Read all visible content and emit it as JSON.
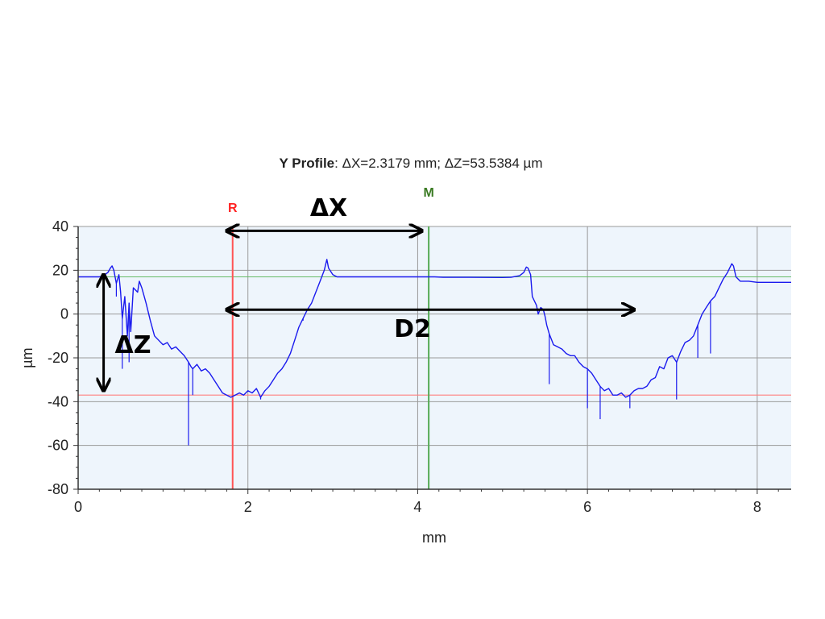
{
  "chart_data": {
    "type": "line",
    "title_bold": "Y Profile",
    "title_rest": ": ΔX=2.3179 mm; ΔZ=53.5384 µm",
    "xlabel": "mm",
    "ylabel": "µm",
    "xlim": [
      0,
      8.4
    ],
    "ylim": [
      -80,
      40
    ],
    "x_ticks": [
      0,
      2,
      4,
      6,
      8
    ],
    "x_tick_labels": [
      "0",
      "2",
      "4",
      "6",
      "8"
    ],
    "y_ticks": [
      40,
      20,
      0,
      -20,
      -40,
      -60,
      -80
    ],
    "y_tick_labels": [
      "40",
      "20",
      "0",
      "-20",
      "-40",
      "-60",
      "-80"
    ],
    "grid": true,
    "plot_background": "#eef5fc",
    "series_color": "#1a1aee",
    "series": [
      {
        "color": "#1a1aee",
        "points": [
          [
            0.0,
            17
          ],
          [
            0.1,
            17
          ],
          [
            0.2,
            17
          ],
          [
            0.25,
            17
          ],
          [
            0.3,
            17.5
          ],
          [
            0.35,
            19
          ],
          [
            0.38,
            21
          ],
          [
            0.4,
            22
          ],
          [
            0.42,
            20
          ],
          [
            0.45,
            14
          ],
          [
            0.48,
            18
          ],
          [
            0.5,
            10
          ],
          [
            0.52,
            -2
          ],
          [
            0.55,
            8
          ],
          [
            0.58,
            -10
          ],
          [
            0.6,
            5
          ],
          [
            0.62,
            -8
          ],
          [
            0.65,
            12
          ],
          [
            0.7,
            10
          ],
          [
            0.72,
            15
          ],
          [
            0.75,
            12
          ],
          [
            0.8,
            5
          ],
          [
            0.85,
            -3
          ],
          [
            0.9,
            -10
          ],
          [
            0.95,
            -12
          ],
          [
            1.0,
            -14
          ],
          [
            1.05,
            -13
          ],
          [
            1.1,
            -16
          ],
          [
            1.15,
            -15
          ],
          [
            1.2,
            -17
          ],
          [
            1.25,
            -19
          ],
          [
            1.3,
            -22
          ],
          [
            1.33,
            -24
          ],
          [
            1.35,
            -25
          ],
          [
            1.4,
            -23
          ],
          [
            1.45,
            -26
          ],
          [
            1.5,
            -25
          ],
          [
            1.55,
            -27
          ],
          [
            1.6,
            -30
          ],
          [
            1.65,
            -33
          ],
          [
            1.7,
            -36
          ],
          [
            1.75,
            -37
          ],
          [
            1.8,
            -38
          ],
          [
            1.85,
            -37
          ],
          [
            1.9,
            -36
          ],
          [
            1.95,
            -37
          ],
          [
            2.0,
            -35
          ],
          [
            2.05,
            -36
          ],
          [
            2.1,
            -34
          ],
          [
            2.15,
            -38
          ],
          [
            2.2,
            -35
          ],
          [
            2.25,
            -33
          ],
          [
            2.3,
            -30
          ],
          [
            2.35,
            -27
          ],
          [
            2.4,
            -25
          ],
          [
            2.45,
            -22
          ],
          [
            2.5,
            -18
          ],
          [
            2.55,
            -12
          ],
          [
            2.6,
            -6
          ],
          [
            2.65,
            -2
          ],
          [
            2.7,
            2
          ],
          [
            2.75,
            5
          ],
          [
            2.8,
            10
          ],
          [
            2.85,
            15
          ],
          [
            2.9,
            20
          ],
          [
            2.93,
            25
          ],
          [
            2.95,
            21
          ],
          [
            3.0,
            18
          ],
          [
            3.05,
            17
          ],
          [
            3.1,
            17
          ],
          [
            3.5,
            17
          ],
          [
            4.0,
            17
          ],
          [
            4.2,
            17
          ],
          [
            4.3,
            16.8
          ],
          [
            4.6,
            16.8
          ],
          [
            5.0,
            16.7
          ],
          [
            5.1,
            16.8
          ],
          [
            5.2,
            17.5
          ],
          [
            5.25,
            19
          ],
          [
            5.28,
            21.5
          ],
          [
            5.3,
            21
          ],
          [
            5.33,
            18
          ],
          [
            5.35,
            8
          ],
          [
            5.4,
            4
          ],
          [
            5.42,
            0
          ],
          [
            5.45,
            3
          ],
          [
            5.48,
            2
          ],
          [
            5.5,
            -1
          ],
          [
            5.52,
            -5
          ],
          [
            5.55,
            -9
          ],
          [
            5.58,
            -12
          ],
          [
            5.6,
            -14
          ],
          [
            5.65,
            -15
          ],
          [
            5.7,
            -16
          ],
          [
            5.75,
            -18
          ],
          [
            5.8,
            -19
          ],
          [
            5.85,
            -19
          ],
          [
            5.9,
            -22
          ],
          [
            5.95,
            -24
          ],
          [
            6.0,
            -25
          ],
          [
            6.05,
            -27
          ],
          [
            6.1,
            -30
          ],
          [
            6.15,
            -33
          ],
          [
            6.2,
            -35
          ],
          [
            6.25,
            -34
          ],
          [
            6.3,
            -37
          ],
          [
            6.35,
            -37
          ],
          [
            6.4,
            -36
          ],
          [
            6.45,
            -38
          ],
          [
            6.5,
            -37
          ],
          [
            6.55,
            -35
          ],
          [
            6.6,
            -34
          ],
          [
            6.65,
            -34
          ],
          [
            6.7,
            -33
          ],
          [
            6.75,
            -30
          ],
          [
            6.8,
            -29
          ],
          [
            6.85,
            -24
          ],
          [
            6.9,
            -25
          ],
          [
            6.95,
            -20
          ],
          [
            7.0,
            -19
          ],
          [
            7.05,
            -22
          ],
          [
            7.1,
            -17
          ],
          [
            7.15,
            -13
          ],
          [
            7.2,
            -12
          ],
          [
            7.25,
            -10
          ],
          [
            7.3,
            -5
          ],
          [
            7.35,
            0
          ],
          [
            7.4,
            3
          ],
          [
            7.45,
            6
          ],
          [
            7.5,
            8
          ],
          [
            7.55,
            12
          ],
          [
            7.6,
            16
          ],
          [
            7.65,
            19
          ],
          [
            7.7,
            23
          ],
          [
            7.72,
            22
          ],
          [
            7.75,
            17
          ],
          [
            7.8,
            15
          ],
          [
            7.9,
            15
          ],
          [
            8.0,
            14.5
          ],
          [
            8.2,
            14.5
          ],
          [
            8.4,
            14.5
          ]
        ],
        "spikes": [
          [
            0.45,
            8
          ],
          [
            0.52,
            -25
          ],
          [
            0.6,
            -22
          ],
          [
            1.3,
            -60
          ],
          [
            1.35,
            -37
          ],
          [
            2.15,
            -39
          ],
          [
            2.65,
            -3
          ],
          [
            5.55,
            -32
          ],
          [
            6.0,
            -43
          ],
          [
            6.15,
            -48
          ],
          [
            6.5,
            -43
          ],
          [
            7.05,
            -39
          ],
          [
            7.3,
            -20
          ],
          [
            7.45,
            -18
          ]
        ]
      }
    ],
    "reference_lines": {
      "h_top": 17,
      "h_bottom": -37,
      "r_cursor_x": 1.82,
      "m_cursor_x": 4.13,
      "h_top_color": "#66bb66",
      "h_bottom_color": "#ff8080",
      "r_color": "#ff5555",
      "m_color": "#55aa55"
    },
    "cursor_labels": {
      "r": "R",
      "m": "M",
      "r_color": "#ff2222",
      "m_color": "#3a7a22"
    },
    "annotations": {
      "dx_label": "ΔX",
      "dz_label": "ΔZ",
      "d2_label": "D2",
      "dx_from": [
        1.75,
        38
      ],
      "dx_to": [
        4.05,
        38
      ],
      "d2_from": [
        1.75,
        2
      ],
      "d2_to": [
        6.55,
        2
      ],
      "dz_from": [
        0.3,
        18
      ],
      "dz_to": [
        0.3,
        -35
      ]
    }
  }
}
